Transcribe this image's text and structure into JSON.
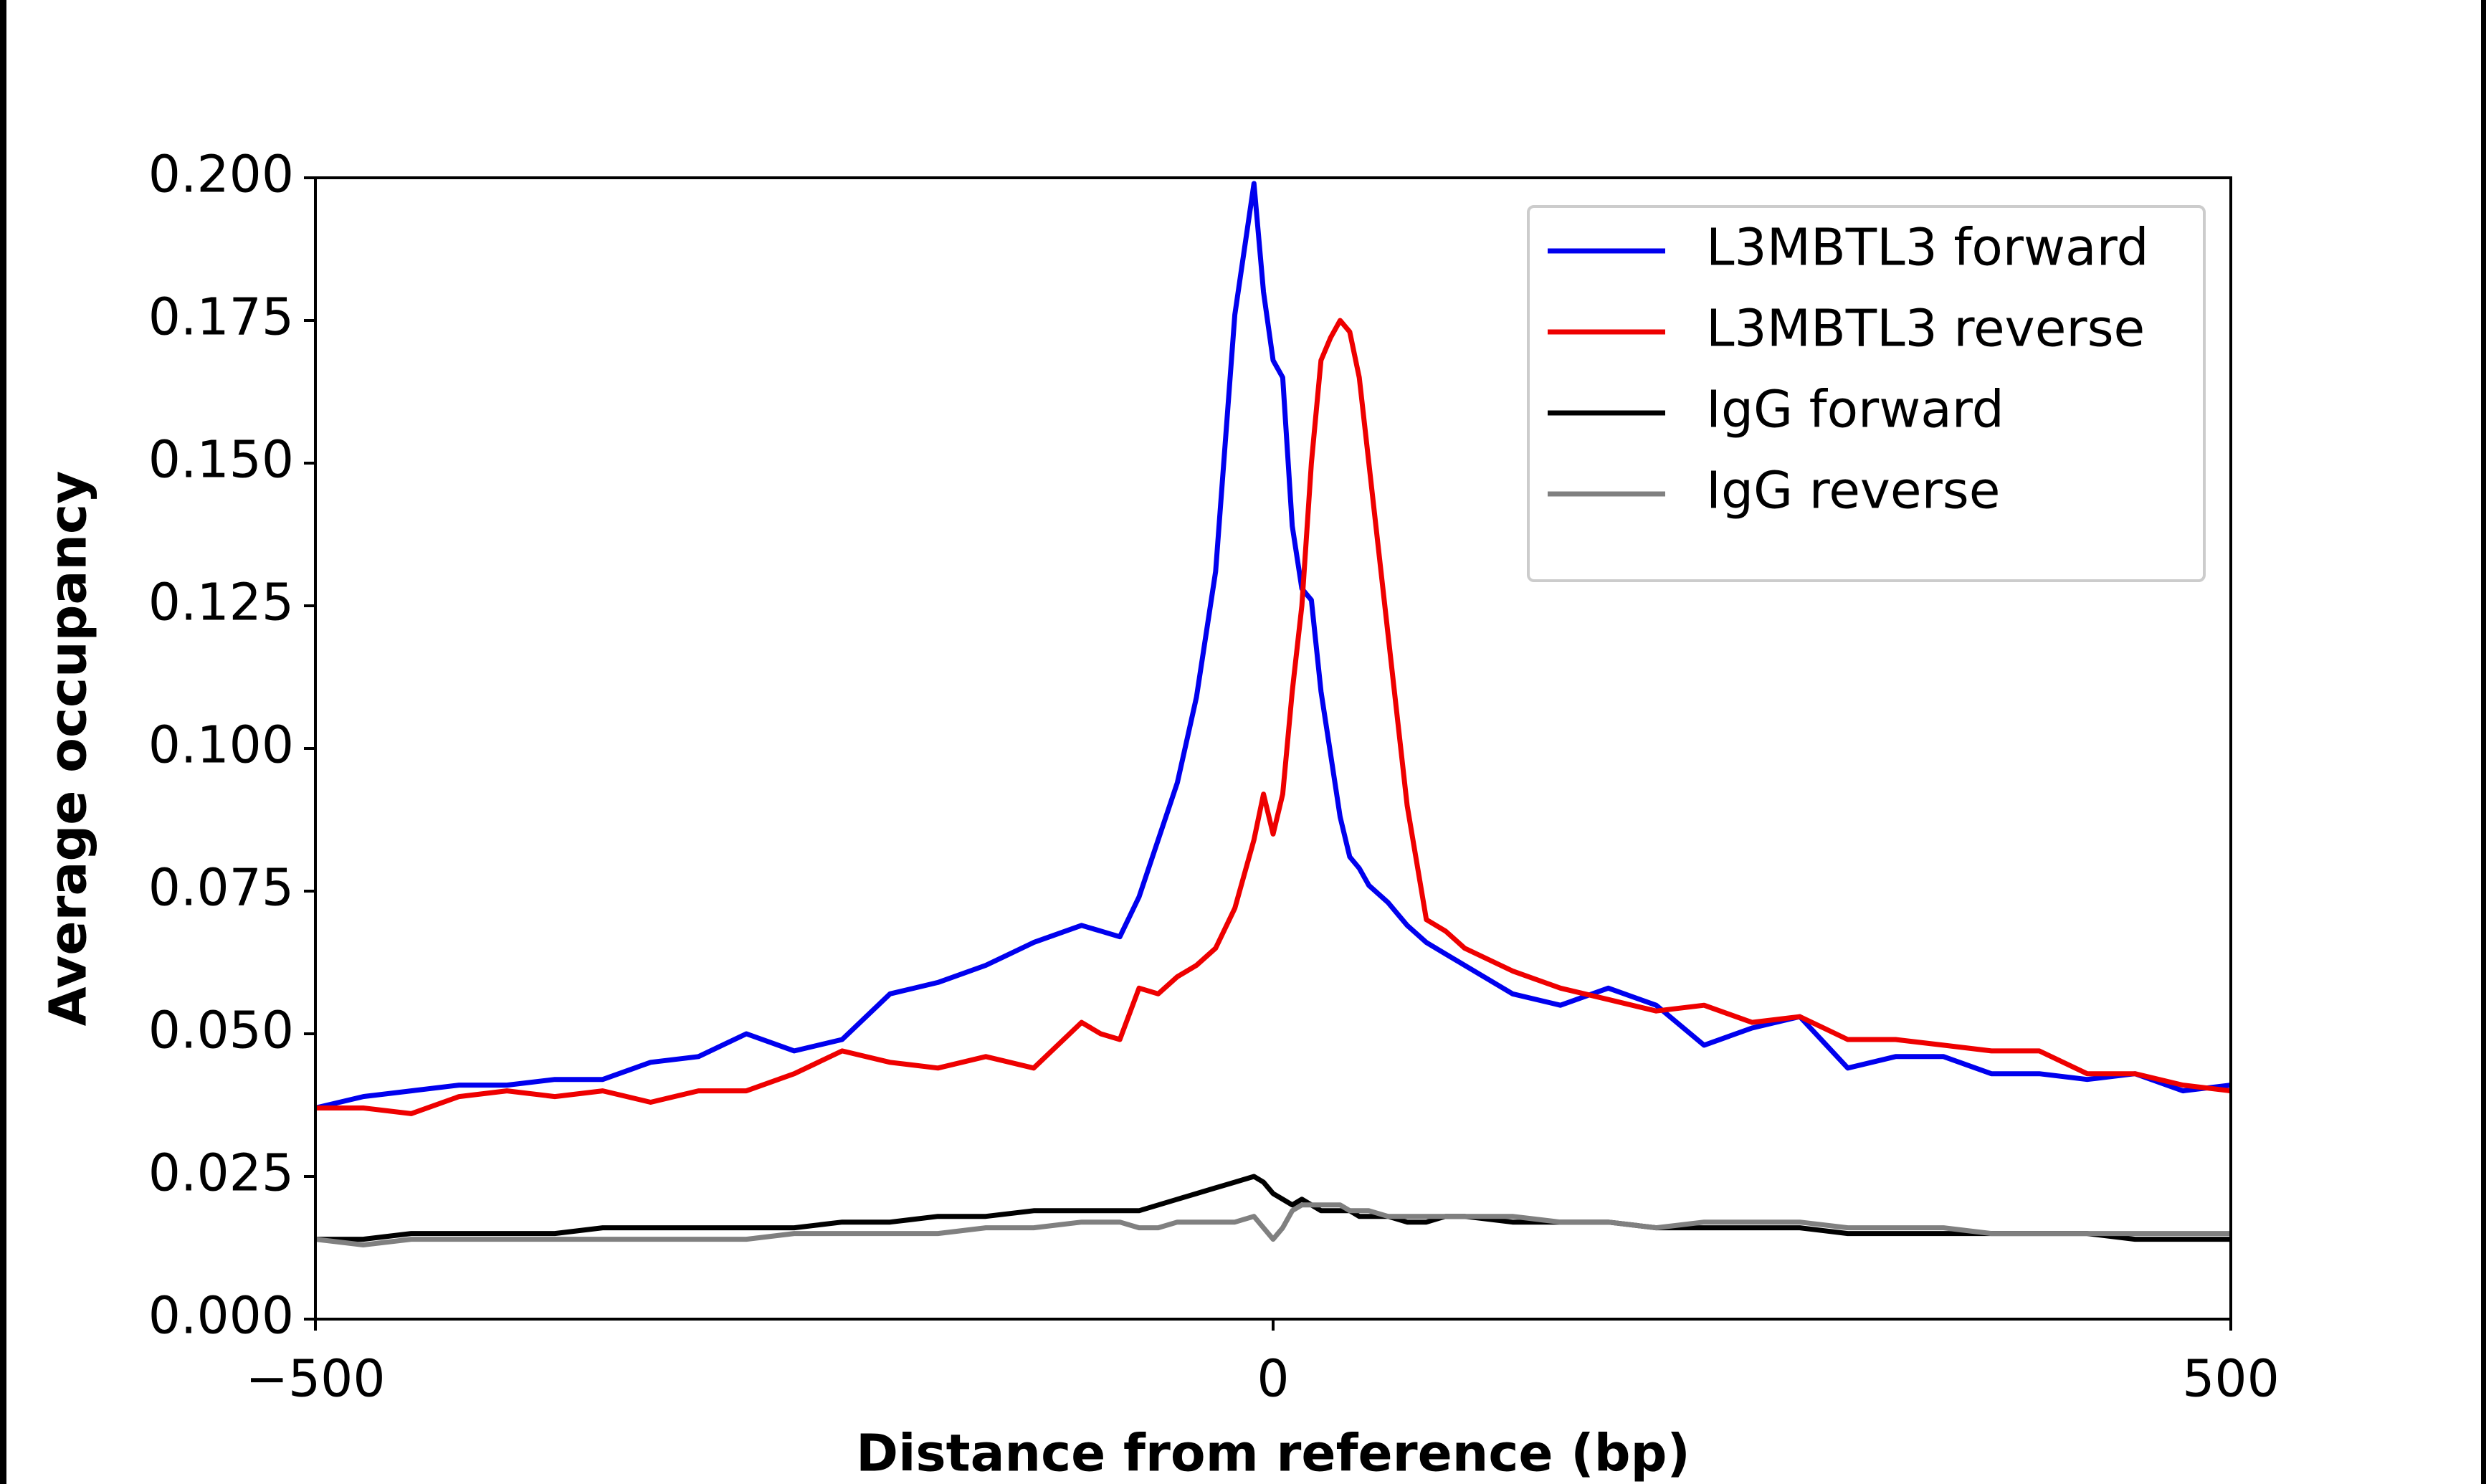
{
  "chart_data": {
    "type": "line",
    "xlabel": "Distance from reference (bp)",
    "ylabel": "Average occupancy",
    "x": [
      -500,
      -475,
      -450,
      -425,
      -400,
      -375,
      -350,
      -325,
      -300,
      -275,
      -250,
      -225,
      -200,
      -175,
      -150,
      -125,
      -100,
      -90,
      -80,
      -70,
      -60,
      -50,
      -40,
      -30,
      -20,
      -10,
      -5,
      0,
      5,
      10,
      15,
      20,
      25,
      30,
      35,
      40,
      45,
      50,
      60,
      70,
      80,
      90,
      100,
      125,
      150,
      175,
      200,
      225,
      250,
      275,
      300,
      325,
      350,
      375,
      400,
      425,
      450,
      475,
      500
    ],
    "series": [
      {
        "name": "L3MBTL3 forward",
        "color": "#0000ee",
        "values": [
          0.037,
          0.039,
          0.04,
          0.041,
          0.041,
          0.042,
          0.042,
          0.045,
          0.046,
          0.05,
          0.047,
          0.049,
          0.057,
          0.059,
          0.062,
          0.066,
          0.069,
          0.068,
          0.067,
          0.074,
          0.084,
          0.094,
          0.109,
          0.131,
          0.176,
          0.199,
          0.18,
          0.168,
          0.165,
          0.139,
          0.128,
          0.126,
          0.11,
          0.099,
          0.088,
          0.081,
          0.079,
          0.076,
          0.073,
          0.069,
          0.066,
          0.064,
          0.062,
          0.057,
          0.055,
          0.058,
          0.055,
          0.048,
          0.051,
          0.053,
          0.044,
          0.046,
          0.046,
          0.043,
          0.043,
          0.042,
          0.043,
          0.04,
          0.041
        ]
      },
      {
        "name": "L3MBTL3 reverse",
        "color": "#ee0000",
        "values": [
          0.037,
          0.037,
          0.036,
          0.039,
          0.04,
          0.039,
          0.04,
          0.038,
          0.04,
          0.04,
          0.043,
          0.047,
          0.045,
          0.044,
          0.046,
          0.044,
          0.052,
          0.05,
          0.049,
          0.058,
          0.057,
          0.06,
          0.062,
          0.065,
          0.072,
          0.084,
          0.092,
          0.085,
          0.092,
          0.11,
          0.125,
          0.15,
          0.168,
          0.172,
          0.175,
          0.173,
          0.165,
          0.15,
          0.12,
          0.09,
          0.07,
          0.068,
          0.065,
          0.061,
          0.058,
          0.056,
          0.054,
          0.055,
          0.052,
          0.053,
          0.049,
          0.049,
          0.048,
          0.047,
          0.047,
          0.043,
          0.043,
          0.041,
          0.04
        ]
      },
      {
        "name": "IgG forward",
        "color": "#000000",
        "values": [
          0.014,
          0.014,
          0.015,
          0.015,
          0.015,
          0.015,
          0.016,
          0.016,
          0.016,
          0.016,
          0.016,
          0.017,
          0.017,
          0.018,
          0.018,
          0.019,
          0.019,
          0.019,
          0.019,
          0.019,
          0.02,
          0.021,
          0.022,
          0.023,
          0.024,
          0.025,
          0.024,
          0.022,
          0.021,
          0.02,
          0.021,
          0.02,
          0.019,
          0.019,
          0.019,
          0.019,
          0.018,
          0.018,
          0.018,
          0.017,
          0.017,
          0.018,
          0.018,
          0.017,
          0.017,
          0.017,
          0.016,
          0.016,
          0.016,
          0.016,
          0.015,
          0.015,
          0.015,
          0.015,
          0.015,
          0.015,
          0.014,
          0.014,
          0.014
        ]
      },
      {
        "name": "IgG reverse",
        "color": "#808080",
        "values": [
          0.014,
          0.013,
          0.014,
          0.014,
          0.014,
          0.014,
          0.014,
          0.014,
          0.014,
          0.014,
          0.015,
          0.015,
          0.015,
          0.015,
          0.016,
          0.016,
          0.017,
          0.017,
          0.017,
          0.016,
          0.016,
          0.017,
          0.017,
          0.017,
          0.017,
          0.018,
          0.016,
          0.014,
          0.016,
          0.019,
          0.02,
          0.02,
          0.02,
          0.02,
          0.02,
          0.019,
          0.019,
          0.019,
          0.018,
          0.018,
          0.018,
          0.018,
          0.018,
          0.018,
          0.017,
          0.017,
          0.016,
          0.017,
          0.017,
          0.017,
          0.016,
          0.016,
          0.016,
          0.015,
          0.015,
          0.015,
          0.015,
          0.015,
          0.015
        ]
      }
    ],
    "xlim": [
      -500,
      500
    ],
    "xticks": [
      {
        "value": -500,
        "label": "−500"
      },
      0,
      500
    ],
    "ylim": [
      0,
      0.2
    ],
    "yticks": [
      {
        "value": 0,
        "label": "0.000"
      },
      0.025,
      {
        "value": 0.05,
        "label": "0.050"
      },
      0.075,
      {
        "value": 0.1,
        "label": "0.100"
      },
      0.125,
      {
        "value": 0.15,
        "label": "0.150"
      },
      0.175,
      {
        "value": 0.2,
        "label": "0.200"
      }
    ],
    "grid": false,
    "legend": "upper right"
  }
}
